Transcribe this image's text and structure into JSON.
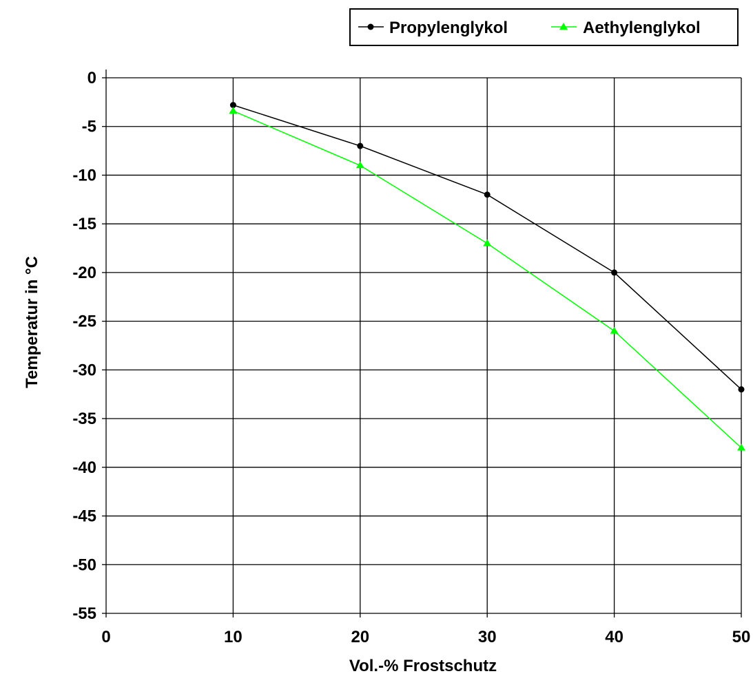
{
  "chart_data": {
    "type": "line",
    "title": "",
    "xlabel": "Vol.-% Frostschutz",
    "ylabel": "Temperatur in °C",
    "xlim": [
      0,
      50
    ],
    "ylim": [
      -55,
      0
    ],
    "x_ticks": [
      0,
      10,
      20,
      30,
      40,
      50
    ],
    "y_ticks": [
      0,
      -5,
      -10,
      -15,
      -20,
      -25,
      -30,
      -35,
      -40,
      -45,
      -50,
      -55
    ],
    "x_tick_labels": [
      "0",
      "10",
      "20",
      "30",
      "40",
      "50"
    ],
    "y_tick_labels": [
      "0",
      "-5",
      "-10",
      "-15",
      "-20",
      "-25",
      "-30",
      "-35",
      "-40",
      "-45",
      "-50",
      "-55"
    ],
    "grid": true,
    "legend_position": "top-right",
    "series": [
      {
        "name": "Propylenglykol",
        "color": "#000000",
        "marker": "circle",
        "x": [
          10,
          20,
          30,
          40,
          50
        ],
        "y": [
          -2.8,
          -7,
          -12,
          -20,
          -32
        ]
      },
      {
        "name": "Aethylenglykol",
        "color": "#00ff00",
        "marker": "triangle",
        "x": [
          10,
          20,
          30,
          40,
          50
        ],
        "y": [
          -3.4,
          -9,
          -17,
          -26,
          -38
        ]
      }
    ]
  }
}
